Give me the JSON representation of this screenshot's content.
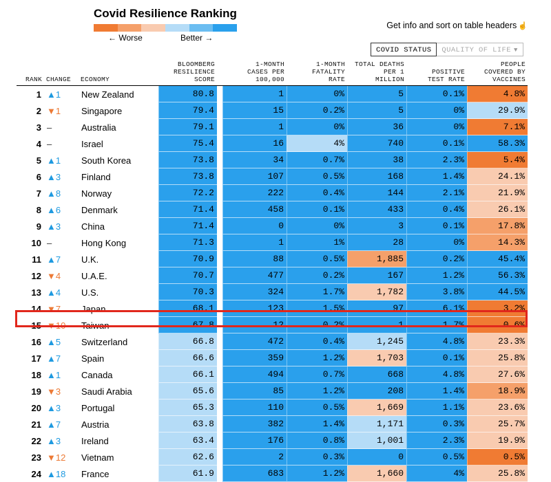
{
  "title": "Covid Resilience Ranking",
  "legend": {
    "worse_label": "← Worse",
    "better_label": "Better →",
    "colors": [
      "#f07b33",
      "#f5a06a",
      "#f9cbb0",
      "#b5dcf7",
      "#6bbdf1",
      "#2aa0ec"
    ]
  },
  "info_text": "Get info and sort on table headers",
  "tabs": {
    "active": "COVID STATUS",
    "inactive": "QUALITY OF LIFE",
    "dropdown_icon": "chevron-down-icon",
    "cursor_icon": "hand-pointer-icon"
  },
  "colors": {
    "deep_blue": "#2aa0ec",
    "mid_blue": "#6bbdf1",
    "light_blue": "#b5dcf7",
    "light_orange": "#f9cbb0",
    "mid_orange": "#f5a06a",
    "deep_orange": "#f07b33",
    "highlight_border": "#e1271c",
    "up_arrow": "#1f9ae0",
    "down_arrow": "#ec7a36"
  },
  "chart_data": {
    "type": "table",
    "title": "Covid Resilience Ranking",
    "columns": [
      "RANK",
      "CHANGE",
      "ECONOMY",
      "BLOOMBERG RESILIENCE SCORE",
      "1-MONTH CASES PER 100,000",
      "1-MONTH FATALITY RATE",
      "TOTAL DEATHS PER 1 MILLION",
      "POSITIVE TEST RATE",
      "PEOPLE COVERED BY VACCINES"
    ],
    "headers": [
      [
        "RANK"
      ],
      [
        "CHANGE"
      ],
      [
        "ECONOMY"
      ],
      [
        "BLOOMBERG",
        "RESILIENCE",
        "SCORE"
      ],
      [
        "1-MONTH",
        "CASES PER",
        "100,000"
      ],
      [
        "1-MONTH",
        "FATALITY",
        "RATE"
      ],
      [
        "TOTAL DEATHS",
        "PER 1",
        "MILLION"
      ],
      [
        "POSITIVE",
        "TEST RATE"
      ],
      [
        "PEOPLE",
        "COVERED BY",
        "VACCINES"
      ]
    ],
    "highlighted_rank": 15,
    "rows": [
      {
        "rank": "1",
        "dir": "up",
        "change": "▲1",
        "economy": "New Zealand",
        "score": "80.8",
        "cases": "1",
        "fatality": "0%",
        "deaths": "5",
        "positive": "0.1%",
        "vaccine": "4.8%",
        "colors": [
          "deep_blue",
          "deep_blue",
          "deep_blue",
          "deep_blue",
          "deep_blue",
          "deep_orange"
        ]
      },
      {
        "rank": "2",
        "dir": "down",
        "change": "▼1",
        "economy": "Singapore",
        "score": "79.4",
        "cases": "15",
        "fatality": "0.2%",
        "deaths": "5",
        "positive": "0%",
        "vaccine": "29.9%",
        "colors": [
          "deep_blue",
          "deep_blue",
          "deep_blue",
          "deep_blue",
          "deep_blue",
          "light_blue"
        ]
      },
      {
        "rank": "3",
        "dir": "same",
        "change": "–",
        "economy": "Australia",
        "score": "79.1",
        "cases": "1",
        "fatality": "0%",
        "deaths": "36",
        "positive": "0%",
        "vaccine": "7.1%",
        "colors": [
          "deep_blue",
          "deep_blue",
          "deep_blue",
          "deep_blue",
          "deep_blue",
          "deep_orange"
        ]
      },
      {
        "rank": "4",
        "dir": "same",
        "change": "–",
        "economy": "Israel",
        "score": "75.4",
        "cases": "16",
        "fatality": "4%",
        "deaths": "740",
        "positive": "0.1%",
        "vaccine": "58.3%",
        "colors": [
          "deep_blue",
          "deep_blue",
          "light_blue",
          "deep_blue",
          "deep_blue",
          "deep_blue"
        ]
      },
      {
        "rank": "5",
        "dir": "up",
        "change": "▲1",
        "economy": "South Korea",
        "score": "73.8",
        "cases": "34",
        "fatality": "0.7%",
        "deaths": "38",
        "positive": "2.3%",
        "vaccine": "5.4%",
        "colors": [
          "deep_blue",
          "deep_blue",
          "deep_blue",
          "deep_blue",
          "deep_blue",
          "deep_orange"
        ]
      },
      {
        "rank": "6",
        "dir": "up",
        "change": "▲3",
        "economy": "Finland",
        "score": "73.8",
        "cases": "107",
        "fatality": "0.5%",
        "deaths": "168",
        "positive": "1.4%",
        "vaccine": "24.1%",
        "colors": [
          "deep_blue",
          "deep_blue",
          "deep_blue",
          "deep_blue",
          "deep_blue",
          "light_orange"
        ]
      },
      {
        "rank": "7",
        "dir": "up",
        "change": "▲8",
        "economy": "Norway",
        "score": "72.2",
        "cases": "222",
        "fatality": "0.4%",
        "deaths": "144",
        "positive": "2.1%",
        "vaccine": "21.9%",
        "colors": [
          "deep_blue",
          "deep_blue",
          "deep_blue",
          "deep_blue",
          "deep_blue",
          "light_orange"
        ]
      },
      {
        "rank": "8",
        "dir": "up",
        "change": "▲6",
        "economy": "Denmark",
        "score": "71.4",
        "cases": "458",
        "fatality": "0.1%",
        "deaths": "433",
        "positive": "0.4%",
        "vaccine": "26.1%",
        "colors": [
          "deep_blue",
          "deep_blue",
          "deep_blue",
          "deep_blue",
          "deep_blue",
          "light_orange"
        ]
      },
      {
        "rank": "9",
        "dir": "up",
        "change": "▲3",
        "economy": "China",
        "score": "71.4",
        "cases": "0",
        "fatality": "0%",
        "deaths": "3",
        "positive": "0.1%",
        "vaccine": "17.8%",
        "colors": [
          "deep_blue",
          "deep_blue",
          "deep_blue",
          "deep_blue",
          "deep_blue",
          "mid_orange"
        ]
      },
      {
        "rank": "10",
        "dir": "same",
        "change": "–",
        "economy": "Hong Kong",
        "score": "71.3",
        "cases": "1",
        "fatality": "1%",
        "deaths": "28",
        "positive": "0%",
        "vaccine": "14.3%",
        "colors": [
          "deep_blue",
          "deep_blue",
          "deep_blue",
          "deep_blue",
          "deep_blue",
          "mid_orange"
        ]
      },
      {
        "rank": "11",
        "dir": "up",
        "change": "▲7",
        "economy": "U.K.",
        "score": "70.9",
        "cases": "88",
        "fatality": "0.5%",
        "deaths": "1,885",
        "positive": "0.2%",
        "vaccine": "45.4%",
        "colors": [
          "deep_blue",
          "deep_blue",
          "deep_blue",
          "mid_orange",
          "deep_blue",
          "deep_blue"
        ]
      },
      {
        "rank": "12",
        "dir": "down",
        "change": "▼4",
        "economy": "U.A.E.",
        "score": "70.7",
        "cases": "477",
        "fatality": "0.2%",
        "deaths": "167",
        "positive": "1.2%",
        "vaccine": "56.3%",
        "colors": [
          "deep_blue",
          "deep_blue",
          "deep_blue",
          "deep_blue",
          "deep_blue",
          "deep_blue"
        ]
      },
      {
        "rank": "13",
        "dir": "up",
        "change": "▲4",
        "economy": "U.S.",
        "score": "70.3",
        "cases": "324",
        "fatality": "1.7%",
        "deaths": "1,782",
        "positive": "3.8%",
        "vaccine": "44.5%",
        "colors": [
          "deep_blue",
          "deep_blue",
          "deep_blue",
          "light_orange",
          "deep_blue",
          "deep_blue"
        ]
      },
      {
        "rank": "14",
        "dir": "down",
        "change": "▼7",
        "economy": "Japan",
        "score": "68.1",
        "cases": "123",
        "fatality": "1.5%",
        "deaths": "97",
        "positive": "6.1%",
        "vaccine": "3.2%",
        "colors": [
          "deep_blue",
          "deep_blue",
          "deep_blue",
          "deep_blue",
          "deep_blue",
          "deep_orange"
        ]
      },
      {
        "rank": "15",
        "dir": "down",
        "change": "▼10",
        "economy": "Taiwan",
        "score": "67.8",
        "cases": "12",
        "fatality": "0.2%",
        "deaths": "1",
        "positive": "1.7%",
        "vaccine": "0.6%",
        "colors": [
          "deep_blue",
          "deep_blue",
          "deep_blue",
          "deep_blue",
          "deep_blue",
          "deep_orange"
        ]
      },
      {
        "rank": "16",
        "dir": "up",
        "change": "▲5",
        "economy": "Switzerland",
        "score": "66.8",
        "cases": "472",
        "fatality": "0.4%",
        "deaths": "1,245",
        "positive": "4.8%",
        "vaccine": "23.3%",
        "colors": [
          "light_blue",
          "deep_blue",
          "deep_blue",
          "light_blue",
          "deep_blue",
          "light_orange"
        ]
      },
      {
        "rank": "17",
        "dir": "up",
        "change": "▲7",
        "economy": "Spain",
        "score": "66.6",
        "cases": "359",
        "fatality": "1.2%",
        "deaths": "1,703",
        "positive": "0.1%",
        "vaccine": "25.8%",
        "colors": [
          "light_blue",
          "deep_blue",
          "deep_blue",
          "light_orange",
          "deep_blue",
          "light_orange"
        ]
      },
      {
        "rank": "18",
        "dir": "up",
        "change": "▲1",
        "economy": "Canada",
        "score": "66.1",
        "cases": "494",
        "fatality": "0.7%",
        "deaths": "668",
        "positive": "4.8%",
        "vaccine": "27.6%",
        "colors": [
          "light_blue",
          "deep_blue",
          "deep_blue",
          "deep_blue",
          "deep_blue",
          "light_orange"
        ]
      },
      {
        "rank": "19",
        "dir": "down",
        "change": "▼3",
        "economy": "Saudi Arabia",
        "score": "65.6",
        "cases": "85",
        "fatality": "1.2%",
        "deaths": "208",
        "positive": "1.4%",
        "vaccine": "18.9%",
        "colors": [
          "light_blue",
          "deep_blue",
          "deep_blue",
          "deep_blue",
          "deep_blue",
          "mid_orange"
        ]
      },
      {
        "rank": "20",
        "dir": "up",
        "change": "▲3",
        "economy": "Portugal",
        "score": "65.3",
        "cases": "110",
        "fatality": "0.5%",
        "deaths": "1,669",
        "positive": "1.1%",
        "vaccine": "23.6%",
        "colors": [
          "light_blue",
          "deep_blue",
          "deep_blue",
          "light_orange",
          "deep_blue",
          "light_orange"
        ]
      },
      {
        "rank": "21",
        "dir": "up",
        "change": "▲7",
        "economy": "Austria",
        "score": "63.8",
        "cases": "382",
        "fatality": "1.4%",
        "deaths": "1,171",
        "positive": "0.3%",
        "vaccine": "25.7%",
        "colors": [
          "light_blue",
          "deep_blue",
          "deep_blue",
          "light_blue",
          "deep_blue",
          "light_orange"
        ]
      },
      {
        "rank": "22",
        "dir": "up",
        "change": "▲3",
        "economy": "Ireland",
        "score": "63.4",
        "cases": "176",
        "fatality": "0.8%",
        "deaths": "1,001",
        "positive": "2.3%",
        "vaccine": "19.9%",
        "colors": [
          "light_blue",
          "deep_blue",
          "deep_blue",
          "light_blue",
          "deep_blue",
          "light_orange"
        ]
      },
      {
        "rank": "23",
        "dir": "down",
        "change": "▼12",
        "economy": "Vietnam",
        "score": "62.6",
        "cases": "2",
        "fatality": "0.3%",
        "deaths": "0",
        "positive": "0.5%",
        "vaccine": "0.5%",
        "colors": [
          "light_blue",
          "deep_blue",
          "deep_blue",
          "deep_blue",
          "deep_blue",
          "deep_orange"
        ]
      },
      {
        "rank": "24",
        "dir": "up",
        "change": "▲18",
        "economy": "France",
        "score": "61.9",
        "cases": "683",
        "fatality": "1.2%",
        "deaths": "1,660",
        "positive": "4%",
        "vaccine": "25.8%",
        "colors": [
          "light_blue",
          "deep_blue",
          "deep_blue",
          "light_orange",
          "deep_blue",
          "light_orange"
        ]
      }
    ]
  }
}
